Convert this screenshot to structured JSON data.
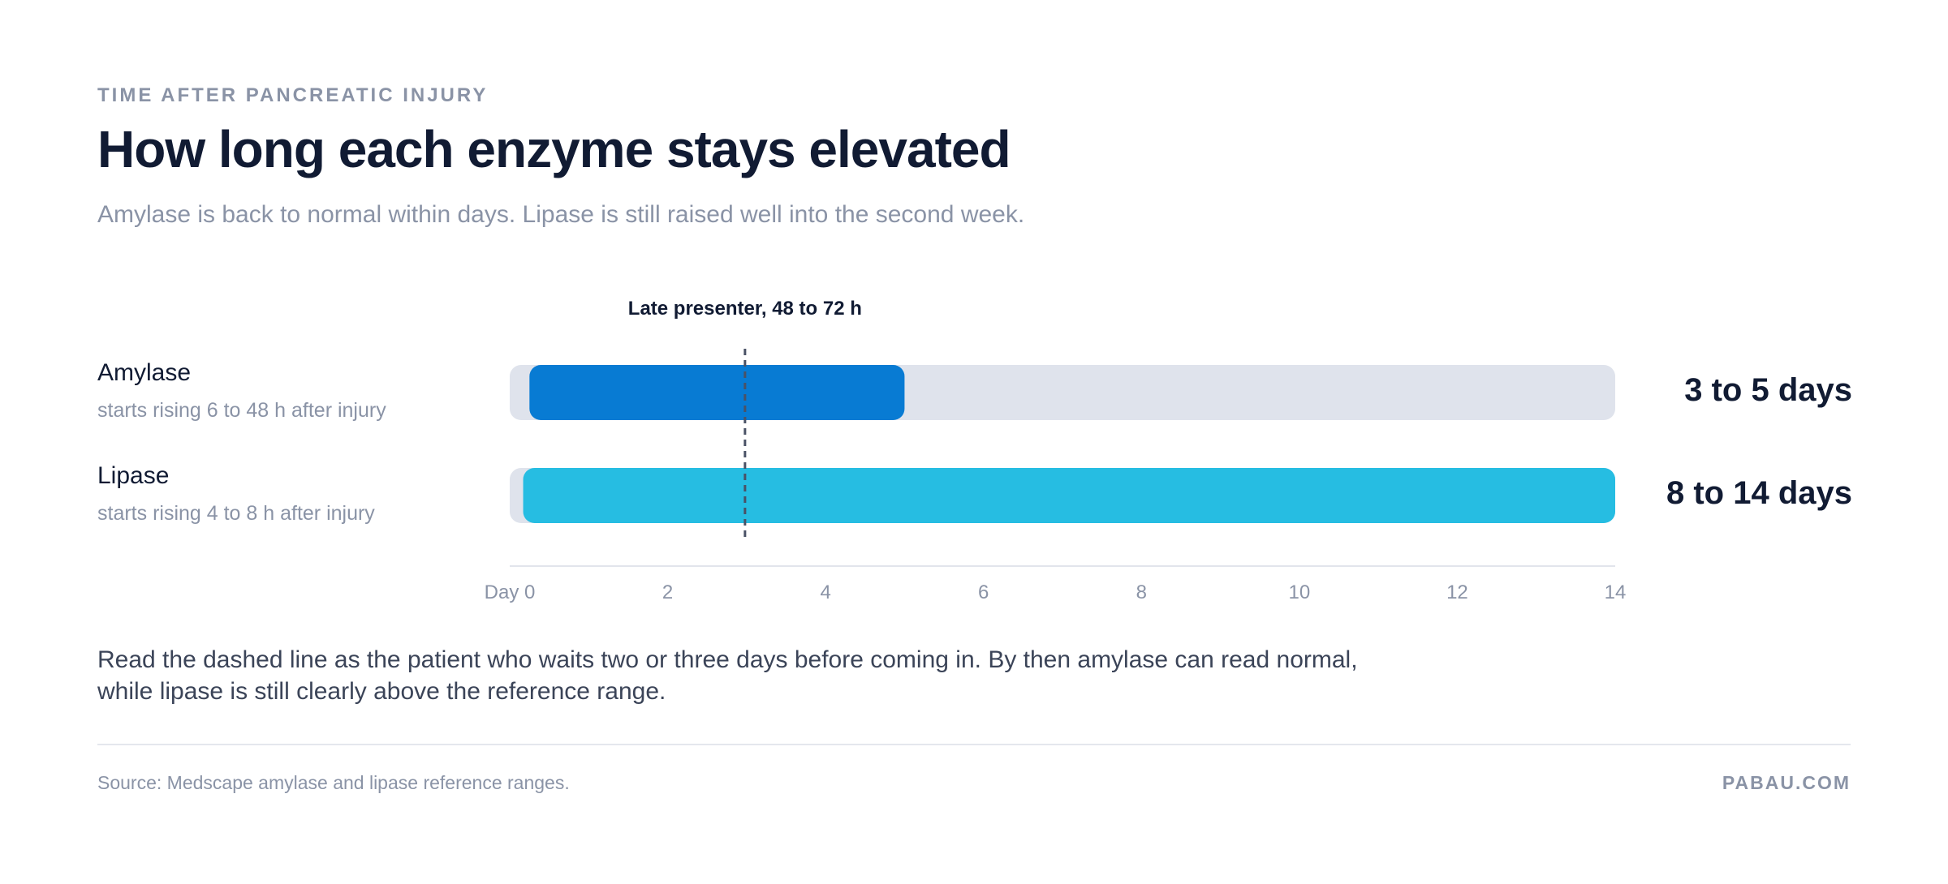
{
  "header": {
    "eyebrow": "TIME AFTER PANCREATIC INJURY",
    "title": "How long each enzyme stays elevated",
    "subtitle": "Amylase is back to normal within days. Lipase is still raised well into the second week."
  },
  "rows": [
    {
      "label": "Amylase",
      "sub": "starts rising 6 to 48 h after injury",
      "duration": "3 to 5 days"
    },
    {
      "label": "Lipase",
      "sub": "starts rising 4 to 8 h after injury",
      "duration": "8 to 14 days"
    }
  ],
  "chart_data": {
    "type": "bar",
    "orientation": "horizontal",
    "categories": [
      "Amylase",
      "Lipase"
    ],
    "series": [
      {
        "name": "Amylase",
        "start": 0.25,
        "end": 5,
        "color": "#087bd3"
      },
      {
        "name": "Lipase",
        "start": 0.17,
        "end": 14,
        "color": "#26bde2"
      }
    ],
    "xlim": [
      0,
      14
    ],
    "x_ticks": [
      0,
      2,
      4,
      6,
      8,
      10,
      12,
      14
    ],
    "x_tick_labels": [
      "Day 0",
      "2",
      "4",
      "6",
      "8",
      "10",
      "12",
      "14"
    ],
    "track_color": "#dfe3ec",
    "marker": {
      "value": 3,
      "label": "Late presenter, 48 to 72 h",
      "style": "dashed"
    }
  },
  "footer": {
    "note": "Read the dashed line as the patient who waits two or three days before coming in. By then amylase can read normal, while lipase is still clearly above the reference range.",
    "source": "Source: Medscape amylase and lipase reference ranges.",
    "brand": "PABAU.COM"
  }
}
